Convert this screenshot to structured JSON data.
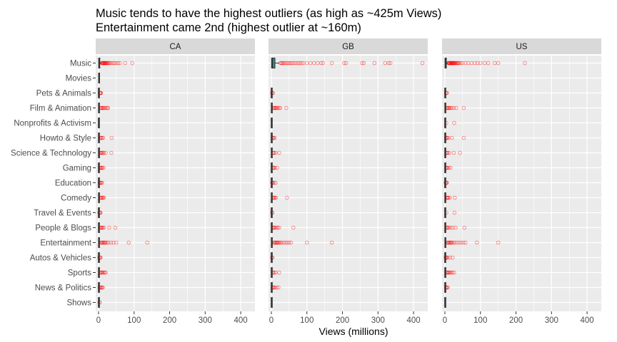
{
  "chart_data": {
    "type": "boxplot",
    "title_lines": [
      "Music tends to have the highest outliers (as high as ~425m Views)",
      "Entertainment came 2nd (highest outlier at ~160m)"
    ],
    "xlabel": "Views (millions)",
    "ylabel": "",
    "xlim": [
      -8,
      440
    ],
    "x_ticks": [
      0,
      100,
      200,
      300,
      400
    ],
    "grid": true,
    "legend": "none",
    "categories": [
      "Music",
      "Movies",
      "Pets & Animals",
      "Film & Animation",
      "Nonprofits & Activism",
      "Howto & Style",
      "Science & Technology",
      "Gaming",
      "Education",
      "Comedy",
      "Travel & Events",
      "People & Blogs",
      "Entertainment",
      "Autos & Vehicles",
      "Sports",
      "News & Politics",
      "Shows"
    ],
    "colors": {
      "panel_bg": "#ebebeb",
      "strip_bg": "#d9d9d9",
      "grid": "#ffffff",
      "box_line": "#333333",
      "outlier": "#ff0000",
      "box_fill": "#2a9d9a"
    },
    "panels": [
      {
        "name": "CA",
        "series": [
          {
            "category": "Music",
            "q1": 0.6,
            "median": 1.5,
            "q3": 3.5,
            "whisker_high": 8,
            "outliers": [
              9,
              10,
              11,
              12,
              13,
              14,
              15,
              16,
              17,
              18,
              19,
              20,
              21,
              22,
              24,
              26,
              28,
              30,
              33,
              37,
              42,
              45,
              50,
              55,
              60,
              75,
              95
            ]
          },
          {
            "category": "Movies",
            "q1": 0.5,
            "median": 1.0,
            "q3": 1.5,
            "whisker_high": 2.5,
            "outliers": []
          },
          {
            "category": "Pets & Animals",
            "q1": 0.1,
            "median": 0.3,
            "q3": 0.8,
            "whisker_high": 2,
            "outliers": [
              3,
              4,
              5,
              6,
              7
            ]
          },
          {
            "category": "Film & Animation",
            "q1": 0.2,
            "median": 0.6,
            "q3": 1.8,
            "whisker_high": 4,
            "outliers": [
              5,
              7,
              9,
              11,
              13,
              15,
              18,
              22,
              25,
              27
            ]
          },
          {
            "category": "Nonprofits & Activism",
            "q1": 0.1,
            "median": 0.2,
            "q3": 0.4,
            "whisker_high": 0.8,
            "outliers": []
          },
          {
            "category": "Howto & Style",
            "q1": 0.1,
            "median": 0.4,
            "q3": 1.2,
            "whisker_high": 3,
            "outliers": [
              4,
              6,
              8,
              10,
              13,
              37
            ]
          },
          {
            "category": "Science & Technology",
            "q1": 0.2,
            "median": 0.5,
            "q3": 1.5,
            "whisker_high": 3.5,
            "outliers": [
              4,
              6,
              8,
              10,
              12,
              15,
              20,
              36
            ]
          },
          {
            "category": "Gaming",
            "q1": 0.1,
            "median": 0.3,
            "q3": 1.0,
            "whisker_high": 2.5,
            "outliers": [
              3.5,
              5,
              7,
              9,
              11,
              14
            ]
          },
          {
            "category": "Education",
            "q1": 0.1,
            "median": 0.3,
            "q3": 0.9,
            "whisker_high": 2.2,
            "outliers": [
              3,
              4,
              6,
              8,
              10
            ]
          },
          {
            "category": "Comedy",
            "q1": 0.2,
            "median": 0.6,
            "q3": 1.6,
            "whisker_high": 4,
            "outliers": [
              5,
              7,
              9,
              11,
              13,
              15
            ]
          },
          {
            "category": "Travel & Events",
            "q1": 0.1,
            "median": 0.2,
            "q3": 0.6,
            "whisker_high": 1.4,
            "outliers": [
              2,
              3,
              4,
              6
            ]
          },
          {
            "category": "People & Blogs",
            "q1": 0.1,
            "median": 0.4,
            "q3": 1.2,
            "whisker_high": 3,
            "outliers": [
              4,
              6,
              8,
              10,
              12,
              15,
              30,
              47
            ]
          },
          {
            "category": "Entertainment",
            "q1": 0.2,
            "median": 0.7,
            "q3": 2.0,
            "whisker_high": 5,
            "outliers": [
              6,
              8,
              10,
              12,
              14,
              16,
              18,
              20,
              24,
              28,
              35,
              42,
              50,
              85,
              137
            ]
          },
          {
            "category": "Autos & Vehicles",
            "q1": 0.1,
            "median": 0.2,
            "q3": 0.6,
            "whisker_high": 1.4,
            "outliers": [
              2,
              3,
              4,
              6
            ]
          },
          {
            "category": "Sports",
            "q1": 0.1,
            "median": 0.4,
            "q3": 1.2,
            "whisker_high": 3,
            "outliers": [
              4,
              6,
              8,
              10,
              12,
              15,
              18,
              20
            ]
          },
          {
            "category": "News & Politics",
            "q1": 0.1,
            "median": 0.3,
            "q3": 0.9,
            "whisker_high": 2.2,
            "outliers": [
              3,
              4,
              6,
              8,
              10,
              12
            ]
          },
          {
            "category": "Shows",
            "q1": 0.1,
            "median": 0.3,
            "q3": 0.8,
            "whisker_high": 2,
            "outliers": [
              2.5,
              3
            ]
          }
        ]
      },
      {
        "name": "GB",
        "series": [
          {
            "category": "Music",
            "q1": 0.8,
            "median": 3,
            "q3": 10,
            "whisker_high": 22,
            "outliers": [
              25,
              28,
              30,
              33,
              36,
              40,
              44,
              48,
              52,
              56,
              60,
              65,
              70,
              75,
              80,
              85,
              90,
              100,
              110,
              120,
              130,
              140,
              145,
              170,
              205,
              210,
              255,
              260,
              290,
              320,
              330,
              335,
              425
            ]
          },
          {
            "category": "Movies",
            "q1": 0,
            "median": 0,
            "q3": 0,
            "whisker_high": 0,
            "outliers": [],
            "empty": true
          },
          {
            "category": "Pets & Animals",
            "q1": 0.1,
            "median": 0.2,
            "q3": 0.6,
            "whisker_high": 1.5,
            "outliers": [
              2,
              3,
              4
            ]
          },
          {
            "category": "Film & Animation",
            "q1": 0.2,
            "median": 0.6,
            "q3": 1.8,
            "whisker_high": 4,
            "outliers": [
              5,
              7,
              9,
              11,
              13,
              15,
              18,
              22,
              25,
              42
            ]
          },
          {
            "category": "Nonprofits & Activism",
            "q1": 0.1,
            "median": 0.2,
            "q3": 0.4,
            "whisker_high": 0.8,
            "outliers": []
          },
          {
            "category": "Howto & Style",
            "q1": 0.1,
            "median": 0.3,
            "q3": 0.9,
            "whisker_high": 2.2,
            "outliers": [
              3,
              5,
              7,
              9
            ]
          },
          {
            "category": "Science & Technology",
            "q1": 0.1,
            "median": 0.4,
            "q3": 1.2,
            "whisker_high": 3,
            "outliers": [
              4,
              6,
              8,
              12,
              22
            ]
          },
          {
            "category": "Gaming",
            "q1": 0.1,
            "median": 0.3,
            "q3": 1.0,
            "whisker_high": 2.5,
            "outliers": [
              3.5,
              5,
              7,
              10,
              16
            ]
          },
          {
            "category": "Education",
            "q1": 0.1,
            "median": 0.2,
            "q3": 0.6,
            "whisker_high": 1.5,
            "outliers": [
              2,
              3,
              4,
              8,
              12
            ]
          },
          {
            "category": "Comedy",
            "q1": 0.1,
            "median": 0.5,
            "q3": 1.4,
            "whisker_high": 3.5,
            "outliers": [
              4.5,
              6,
              8,
              10,
              13,
              44
            ]
          },
          {
            "category": "Travel & Events",
            "q1": 0.1,
            "median": 0.2,
            "q3": 0.4,
            "whisker_high": 0.9,
            "outliers": [
              2,
              3
            ]
          },
          {
            "category": "People & Blogs",
            "q1": 0.1,
            "median": 0.4,
            "q3": 1.2,
            "whisker_high": 3,
            "outliers": [
              4,
              6,
              8,
              10,
              14,
              18,
              22,
              62
            ]
          },
          {
            "category": "Entertainment",
            "q1": 0.2,
            "median": 0.6,
            "q3": 2.0,
            "whisker_high": 5,
            "outliers": [
              6,
              8,
              10,
              12,
              14,
              16,
              18,
              20,
              23,
              26,
              30,
              35,
              40,
              45,
              50,
              55,
              100,
              170
            ]
          },
          {
            "category": "Autos & Vehicles",
            "q1": 0.1,
            "median": 0.2,
            "q3": 0.4,
            "whisker_high": 0.9,
            "outliers": [
              2,
              3
            ]
          },
          {
            "category": "Sports",
            "q1": 0.1,
            "median": 0.3,
            "q3": 1.0,
            "whisker_high": 2.5,
            "outliers": [
              3.5,
              5,
              8,
              12,
              22
            ]
          },
          {
            "category": "News & Politics",
            "q1": 0.1,
            "median": 0.3,
            "q3": 0.9,
            "whisker_high": 2.2,
            "outliers": [
              3,
              5,
              7,
              10,
              15,
              20
            ]
          },
          {
            "category": "Shows",
            "q1": 0.1,
            "median": 0.2,
            "q3": 0.5,
            "whisker_high": 1.2,
            "outliers": []
          }
        ]
      },
      {
        "name": "US",
        "series": [
          {
            "category": "Music",
            "q1": 0.5,
            "median": 1.5,
            "q3": 4,
            "whisker_high": 8,
            "outliers": [
              9,
              10,
              11,
              12,
              13,
              14,
              15,
              16,
              17,
              18,
              19,
              20,
              21,
              22,
              23,
              24,
              25,
              26,
              27,
              28,
              30,
              32,
              34,
              36,
              38,
              40,
              45,
              50,
              58,
              66,
              75,
              84,
              92,
              100,
              112,
              122,
              140,
              150,
              225
            ]
          },
          {
            "category": "Movies",
            "q1": 0,
            "median": 0,
            "q3": 0,
            "whisker_high": 0,
            "outliers": [],
            "empty": true
          },
          {
            "category": "Pets & Animals",
            "q1": 0.1,
            "median": 0.3,
            "q3": 0.8,
            "whisker_high": 2,
            "outliers": [
              3,
              4,
              6
            ]
          },
          {
            "category": "Film & Animation",
            "q1": 0.2,
            "median": 0.6,
            "q3": 1.6,
            "whisker_high": 4,
            "outliers": [
              5,
              7,
              9,
              11,
              13,
              16,
              20,
              25,
              32,
              53
            ]
          },
          {
            "category": "Nonprofits & Activism",
            "q1": 0.1,
            "median": 0.2,
            "q3": 0.4,
            "whisker_high": 0.8,
            "outliers": [
              4,
              26
            ]
          },
          {
            "category": "Howto & Style",
            "q1": 0.1,
            "median": 0.3,
            "q3": 1.0,
            "whisker_high": 2.5,
            "outliers": [
              3.5,
              5,
              7,
              10,
              20,
              53
            ]
          },
          {
            "category": "Science & Technology",
            "q1": 0.1,
            "median": 0.4,
            "q3": 1.2,
            "whisker_high": 3,
            "outliers": [
              4,
              6,
              8,
              12,
              25,
              42
            ]
          },
          {
            "category": "Gaming",
            "q1": 0.1,
            "median": 0.3,
            "q3": 1.0,
            "whisker_high": 2.5,
            "outliers": [
              3.5,
              5,
              7,
              11,
              16
            ]
          },
          {
            "category": "Education",
            "q1": 0.1,
            "median": 0.2,
            "q3": 0.6,
            "whisker_high": 1.5,
            "outliers": [
              2,
              3,
              4,
              6
            ]
          },
          {
            "category": "Comedy",
            "q1": 0.1,
            "median": 0.5,
            "q3": 1.4,
            "whisker_high": 3.5,
            "outliers": [
              4.5,
              6,
              8,
              10,
              14,
              28
            ]
          },
          {
            "category": "Travel & Events",
            "q1": 0.1,
            "median": 0.2,
            "q3": 0.4,
            "whisker_high": 0.9,
            "outliers": [
              4,
              27
            ]
          },
          {
            "category": "People & Blogs",
            "q1": 0.1,
            "median": 0.4,
            "q3": 1.2,
            "whisker_high": 3,
            "outliers": [
              4,
              6,
              8,
              11,
              16,
              22,
              30,
              55
            ]
          },
          {
            "category": "Entertainment",
            "q1": 0.2,
            "median": 0.7,
            "q3": 2.0,
            "whisker_high": 5,
            "outliers": [
              6,
              8,
              10,
              12,
              14,
              16,
              18,
              20,
              24,
              28,
              34,
              40,
              46,
              52,
              58,
              90,
              150
            ]
          },
          {
            "category": "Autos & Vehicles",
            "q1": 0.1,
            "median": 0.2,
            "q3": 0.6,
            "whisker_high": 1.4,
            "outliers": [
              2,
              3,
              5,
              8,
              14,
              22
            ]
          },
          {
            "category": "Sports",
            "q1": 0.1,
            "median": 0.4,
            "q3": 1.2,
            "whisker_high": 3,
            "outliers": [
              4,
              6,
              8,
              10,
              12,
              15,
              18,
              22,
              26
            ]
          },
          {
            "category": "News & Politics",
            "q1": 0.1,
            "median": 0.3,
            "q3": 0.9,
            "whisker_high": 2.2,
            "outliers": [
              3,
              4,
              6,
              8
            ]
          },
          {
            "category": "Shows",
            "q1": 0.1,
            "median": 0.2,
            "q3": 0.5,
            "whisker_high": 1.2,
            "outliers": []
          }
        ]
      }
    ]
  }
}
